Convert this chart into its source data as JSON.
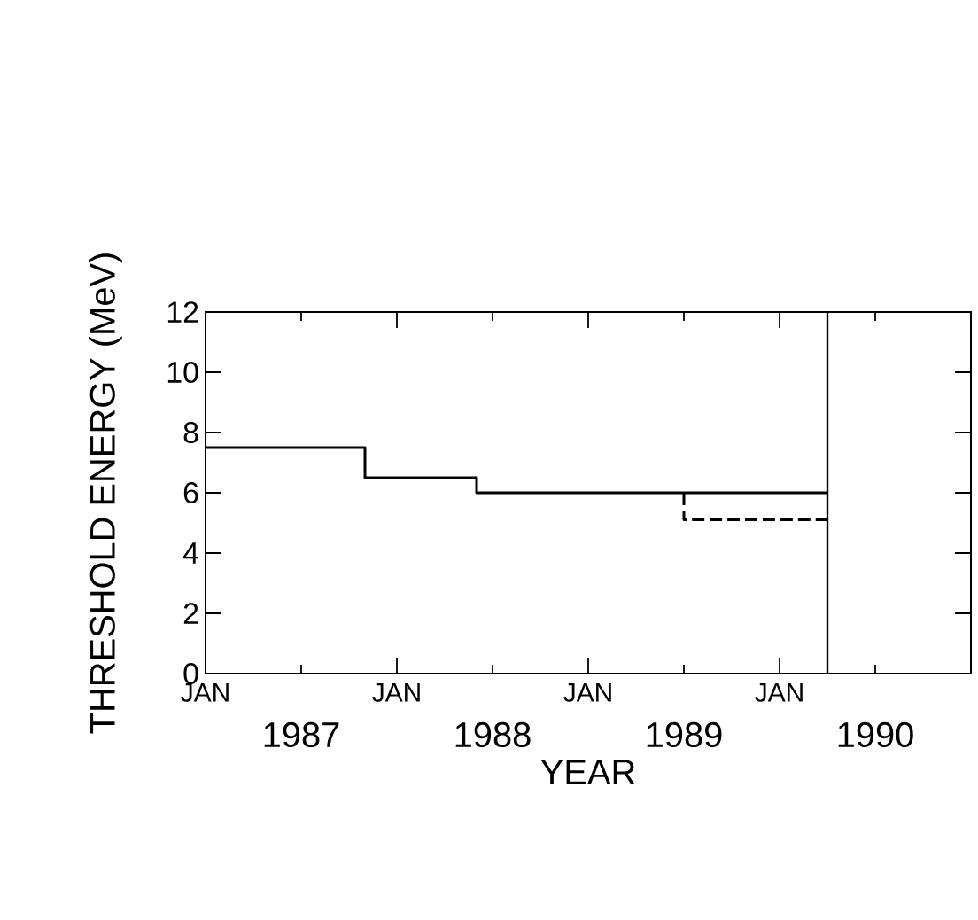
{
  "chart_data": {
    "type": "step",
    "ylabel": "THRESHOLD ENERGY (MeV)",
    "xlabel": "YEAR",
    "xlim": [
      "1987-01",
      "1991-01"
    ],
    "ylim": [
      0,
      12
    ],
    "yticks": [
      0,
      2,
      4,
      6,
      8,
      10,
      12
    ],
    "xticks": [
      {
        "value": "1987-01",
        "label": "JAN"
      },
      {
        "value": "1988-01",
        "label": "JAN"
      },
      {
        "value": "1989-01",
        "label": "JAN"
      },
      {
        "value": "1990-01",
        "label": "JAN"
      }
    ],
    "x2lim": [
      "1987-01",
      "1991-01"
    ],
    "x2ticks": [
      {
        "value": "1987-07",
        "label": "1987"
      },
      {
        "value": "1988-07",
        "label": "1988"
      },
      {
        "value": "1989-07",
        "label": "1989"
      },
      {
        "value": "1990-07",
        "label": "1990"
      }
    ],
    "series": [
      {
        "color": "#000000",
        "line_style": "solid",
        "x": [
          "1987-01",
          "1987-11",
          "1988-06",
          "1990-04"
        ],
        "values": [
          7.5,
          6.5,
          6.0,
          6.0
        ]
      },
      {
        "color": "#000000",
        "line_style": "dashed",
        "x": [
          "1989-07",
          "1989-07",
          "1990-04"
        ],
        "values": [
          6.0,
          5.1,
          5.1
        ]
      }
    ],
    "ref_lines": [
      {
        "axis": "x",
        "value": "1990-04",
        "color": "#000000"
      }
    ],
    "grid": false
  }
}
